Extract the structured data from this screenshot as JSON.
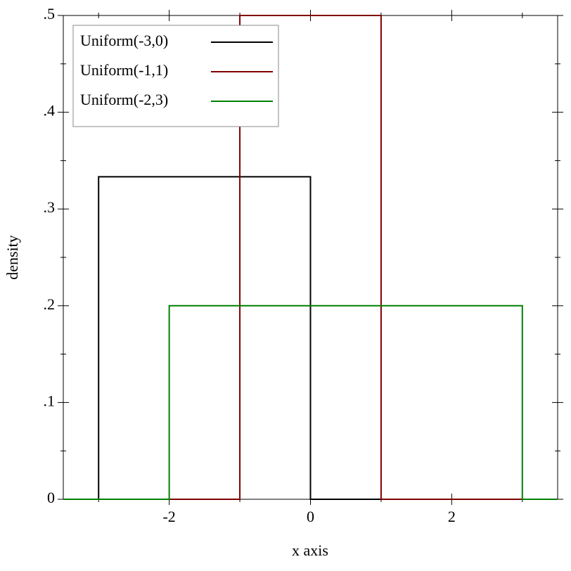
{
  "chart_data": {
    "type": "line",
    "xlabel": "x axis",
    "ylabel": "density",
    "xlim": [
      -3.5,
      3.5
    ],
    "ylim": [
      0,
      0.5
    ],
    "xticks": [
      -2,
      0,
      2
    ],
    "xminorticks": [
      -3,
      -1,
      1,
      3
    ],
    "yticks": [
      0,
      {
        "value": 0.1,
        "label": ".1"
      },
      {
        "value": 0.2,
        "label": ".2"
      },
      {
        "value": 0.3,
        "label": ".3"
      },
      {
        "value": 0.4,
        "label": ".4"
      },
      {
        "value": 0.5,
        "label": ".5"
      }
    ],
    "yminorticks": [
      0.05,
      0.15,
      0.25,
      0.35,
      0.45
    ],
    "legend": "upper-left",
    "series": [
      {
        "name": "Uniform(-3,0)",
        "color": "#000000",
        "x": [
          -3.5,
          -3,
          -3,
          0,
          0,
          3.5
        ],
        "values": [
          0,
          0,
          0.3333,
          0.3333,
          0,
          0
        ]
      },
      {
        "name": "Uniform(-1,1)",
        "color": "#800000",
        "x": [
          -3.5,
          -1,
          -1,
          1,
          1,
          3.5
        ],
        "values": [
          0,
          0,
          0.5,
          0.5,
          0,
          0
        ]
      },
      {
        "name": "Uniform(-2,3)",
        "color": "#008000",
        "x": [
          -3.5,
          -2,
          -2,
          3,
          3,
          3.5
        ],
        "values": [
          0,
          0,
          0.2,
          0.2,
          0,
          0
        ]
      }
    ]
  }
}
